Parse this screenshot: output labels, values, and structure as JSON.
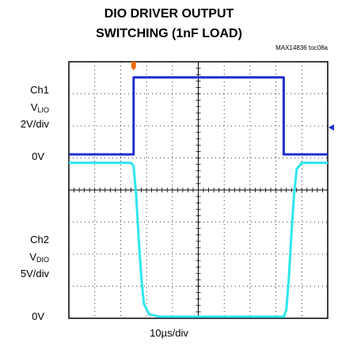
{
  "title": {
    "line1": "DIO DRIVER OUTPUT",
    "line2": "SWITCHING (1nF LOAD)",
    "figure_id": "MAX14836 toc08a"
  },
  "channels": {
    "ch1": {
      "name": "Ch1",
      "signal": "V",
      "signal_sub": "LIO",
      "scale": "2V/div",
      "zero": "0V"
    },
    "ch2": {
      "name": "Ch2",
      "signal": "V",
      "signal_sub": "DIO",
      "scale": "5V/div",
      "zero": "0V"
    }
  },
  "xlabel": "10µs/div",
  "colors": {
    "ch1": "#1f2fd0",
    "ch2": "#2ee6ee",
    "trigger": "#f26a0f",
    "grid": "#000000"
  },
  "chart_data": {
    "type": "line",
    "x_divisions": 10,
    "y_divisions": 8,
    "x_unit": "µs",
    "x_per_div": 10,
    "x_range": [
      0,
      100
    ],
    "series": [
      {
        "name": "Ch1",
        "volts_per_div": 2,
        "x": [
          0,
          25,
          25,
          83,
          83,
          100
        ],
        "y": [
          0,
          0,
          4.8,
          4.8,
          0,
          0
        ]
      },
      {
        "name": "Ch2",
        "volts_per_div": 5,
        "x": [
          0,
          24,
          25,
          26,
          27,
          28,
          29,
          31,
          35,
          83,
          84,
          85,
          86,
          87,
          88,
          90,
          100
        ],
        "y": [
          24,
          24,
          23.5,
          19,
          12,
          6,
          2,
          0.4,
          0,
          0,
          1,
          6,
          13,
          19,
          23,
          24,
          24
        ]
      }
    ],
    "trigger_x": 25
  }
}
